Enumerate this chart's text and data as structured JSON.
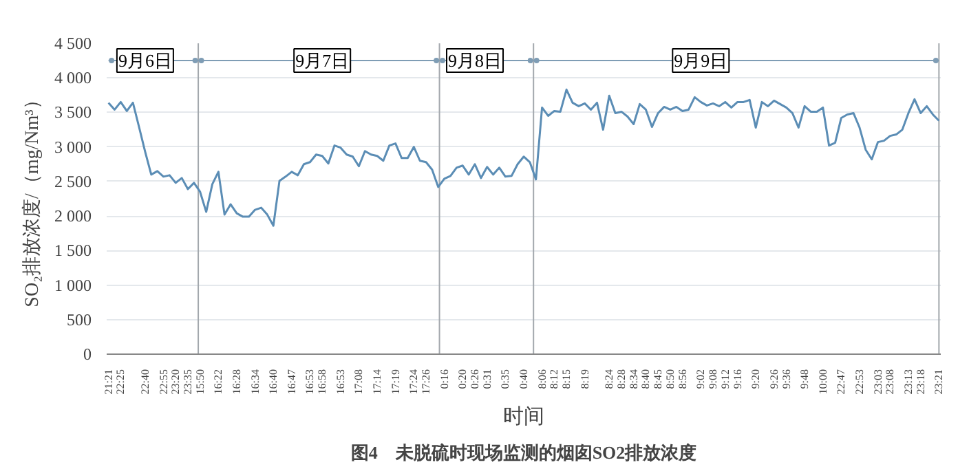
{
  "chart_data": {
    "type": "line",
    "title": "图4　未脱硫时现场监测的烟囱SO2排放浓度",
    "xlabel": "时间",
    "ylabel": "SO₂排放浓度/（mg/Nm³）",
    "categories": [
      "21:21",
      null,
      "22:25",
      null,
      null,
      null,
      "22:40",
      null,
      null,
      "22:55",
      null,
      "23:20",
      null,
      "23:35",
      null,
      "15:50",
      null,
      null,
      "16:22",
      null,
      null,
      "16:28",
      null,
      null,
      "16:34",
      null,
      null,
      "16:40",
      null,
      null,
      "16:47",
      null,
      null,
      "16:53",
      null,
      "16:58",
      null,
      null,
      "16:53",
      null,
      null,
      "17:08",
      null,
      null,
      "17:14",
      null,
      null,
      "17:19",
      null,
      null,
      "17:24",
      null,
      "17:26",
      null,
      null,
      "0:16",
      null,
      null,
      "0:20",
      null,
      "0:26",
      null,
      "0:31",
      null,
      null,
      "0:35",
      null,
      null,
      "0:40",
      null,
      null,
      "8:06",
      null,
      "8:12",
      null,
      "8:15",
      null,
      null,
      "8:19",
      null,
      null,
      null,
      "8:24",
      null,
      "8:28",
      null,
      "8:34",
      null,
      "8:40",
      null,
      "8:45",
      null,
      "8:50",
      null,
      "8:56",
      null,
      null,
      "9:02",
      null,
      "9:08",
      null,
      "9:12",
      null,
      "9:16",
      null,
      null,
      "9:20",
      null,
      null,
      "9:26",
      null,
      "9:36",
      null,
      null,
      "9:48",
      null,
      null,
      "10:00",
      null,
      null,
      "22:47",
      null,
      null,
      "22:53",
      null,
      null,
      "23:03",
      null,
      "23:08",
      null,
      null,
      "23:13",
      null,
      "23:18",
      null,
      null,
      "23:21"
    ],
    "series": [
      {
        "color": "#5b8db5",
        "values": [
          3640,
          3540,
          3650,
          3520,
          3640,
          3290,
          2930,
          2600,
          2650,
          2570,
          2590,
          2480,
          2550,
          2390,
          2480,
          2350,
          2060,
          2460,
          2640,
          2020,
          2170,
          2040,
          1990,
          1990,
          2090,
          2120,
          2020,
          1860,
          2510,
          2570,
          2640,
          2590,
          2750,
          2780,
          2890,
          2870,
          2760,
          3020,
          2990,
          2890,
          2860,
          2720,
          2940,
          2890,
          2870,
          2800,
          3020,
          3050,
          2840,
          2840,
          3000,
          2800,
          2780,
          2670,
          2420,
          2540,
          2580,
          2700,
          2730,
          2600,
          2750,
          2550,
          2710,
          2600,
          2700,
          2570,
          2580,
          2750,
          2860,
          2780,
          2530,
          3570,
          3450,
          3520,
          3510,
          3830,
          3640,
          3590,
          3630,
          3540,
          3640,
          3250,
          3740,
          3490,
          3510,
          3440,
          3330,
          3620,
          3540,
          3290,
          3490,
          3580,
          3540,
          3580,
          3520,
          3540,
          3720,
          3650,
          3600,
          3630,
          3590,
          3650,
          3570,
          3650,
          3650,
          3680,
          3280,
          3650,
          3590,
          3670,
          3620,
          3570,
          3490,
          3280,
          3590,
          3510,
          3510,
          3570,
          3020,
          3060,
          3420,
          3470,
          3490,
          3280,
          2960,
          2820,
          3070,
          3090,
          3160,
          3180,
          3250,
          3490,
          3690,
          3490,
          3590,
          3470,
          3380
        ]
      }
    ],
    "ylim": [
      0,
      4500
    ],
    "yticks": [
      0,
      500,
      {
        "value": 1000,
        "label": "1 000"
      },
      {
        "value": 1500,
        "label": "1 500"
      },
      {
        "value": 2000,
        "label": "2 000"
      },
      {
        "value": 2500,
        "label": "2 500"
      },
      {
        "value": 3000,
        "label": "3 000"
      },
      {
        "value": 3500,
        "label": "3 500"
      },
      {
        "value": 4000,
        "label": "4 000"
      },
      {
        "value": 4500,
        "label": "4 500"
      }
    ],
    "grid": "y",
    "marker": "none",
    "line_style": "solid",
    "annotations": [
      {
        "text": "9月6日",
        "x": "22:40",
        "y": 4250
      },
      {
        "text": "9月7日",
        "x": "16:58",
        "y": 4250
      },
      {
        "text": "9月8日",
        "x": "0:26",
        "y": 4250
      },
      {
        "text": "9月9日",
        "x": "9:02",
        "y": 4250
      }
    ]
  }
}
